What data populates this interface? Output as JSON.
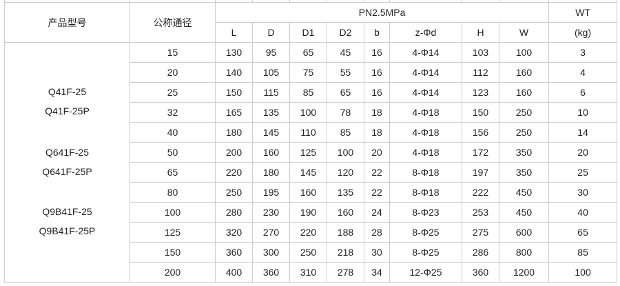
{
  "header": {
    "model": "产品型号",
    "nominal_diameter": "公称通径",
    "pressure": "PN2.5MPa",
    "wt": "WT",
    "wt_unit": "(kg)",
    "columns": [
      "L",
      "D",
      "D1",
      "D2",
      "b",
      "z-Φd",
      "H",
      "W"
    ]
  },
  "models": [
    "Q41F-25",
    "Q41F-25P",
    "Q641F-25",
    "Q641F-25P",
    "Q9B41F-25",
    "Q9B41F-25P"
  ],
  "rows": [
    [
      "15",
      "130",
      "95",
      "65",
      "45",
      "16",
      "4-Φ14",
      "103",
      "100",
      "3"
    ],
    [
      "20",
      "140",
      "105",
      "75",
      "55",
      "16",
      "4-Φ14",
      "112",
      "160",
      "4"
    ],
    [
      "25",
      "150",
      "115",
      "85",
      "65",
      "16",
      "4-Φ14",
      "123",
      "160",
      "6"
    ],
    [
      "32",
      "165",
      "135",
      "100",
      "78",
      "18",
      "4-Φ18",
      "150",
      "250",
      "10"
    ],
    [
      "40",
      "180",
      "145",
      "110",
      "85",
      "18",
      "4-Φ18",
      "156",
      "250",
      "14"
    ],
    [
      "50",
      "200",
      "160",
      "125",
      "100",
      "20",
      "4-Φ18",
      "172",
      "350",
      "20"
    ],
    [
      "65",
      "220",
      "180",
      "145",
      "120",
      "22",
      "8-Φ18",
      "197",
      "350",
      "25"
    ],
    [
      "80",
      "250",
      "195",
      "160",
      "135",
      "22",
      "8-Φ18",
      "222",
      "450",
      "30"
    ],
    [
      "100",
      "280",
      "230",
      "190",
      "160",
      "24",
      "8-Φ23",
      "253",
      "450",
      "40"
    ],
    [
      "125",
      "320",
      "270",
      "220",
      "188",
      "28",
      "8-Φ25",
      "275",
      "600",
      "65"
    ],
    [
      "150",
      "360",
      "300",
      "250",
      "218",
      "30",
      "8-Φ25",
      "286",
      "800",
      "85"
    ],
    [
      "200",
      "400",
      "360",
      "310",
      "278",
      "34",
      "12-Φ25",
      "360",
      "1200",
      "100"
    ]
  ]
}
